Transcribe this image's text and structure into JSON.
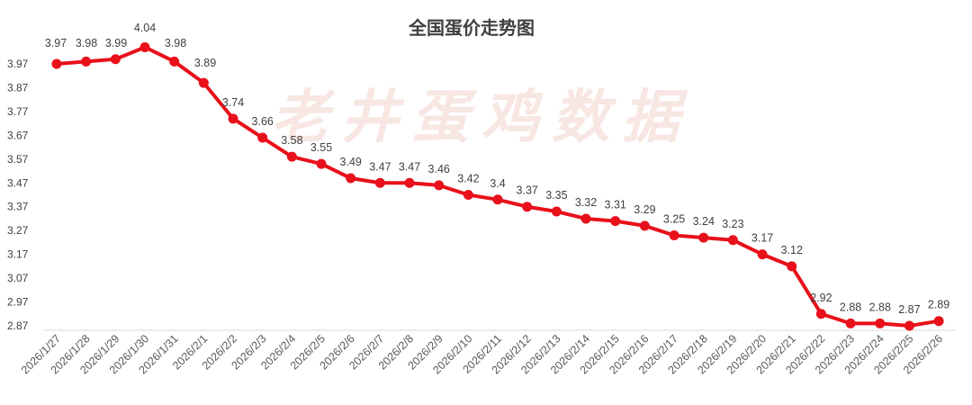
{
  "chart_data": {
    "type": "line",
    "title": "全国蛋价走势图",
    "watermark": "老井蛋鸡数据",
    "xlabel": "",
    "ylabel": "",
    "ylim": [
      2.87,
      3.97
    ],
    "yticks": [
      "3.97",
      "3.87",
      "3.77",
      "3.67",
      "3.57",
      "3.47",
      "3.37",
      "3.27",
      "3.17",
      "3.07",
      "2.97",
      "2.87"
    ],
    "grid": false,
    "legend": "none",
    "color": "#e8101a",
    "categories": [
      "2026/1/27",
      "2026/1/28",
      "2026/1/29",
      "2026/1/30",
      "2026/1/31",
      "2026/2/1",
      "2026/2/2",
      "2026/2/3",
      "2026/2/4",
      "2026/2/5",
      "2026/2/6",
      "2026/2/7",
      "2026/2/8",
      "2026/2/9",
      "2026/2/10",
      "2026/2/11",
      "2026/2/12",
      "2026/2/13",
      "2026/2/14",
      "2026/2/15",
      "2026/2/16",
      "2026/2/17",
      "2026/2/18",
      "2026/2/19",
      "2026/2/20",
      "2026/2/21",
      "2026/2/22",
      "2026/2/23",
      "2026/2/24",
      "2026/2/25",
      "2026/2/26"
    ],
    "values": [
      3.97,
      3.98,
      3.99,
      4.04,
      3.98,
      3.89,
      3.74,
      3.66,
      3.58,
      3.55,
      3.49,
      3.47,
      3.47,
      3.46,
      3.42,
      3.4,
      3.37,
      3.35,
      3.32,
      3.31,
      3.29,
      3.25,
      3.24,
      3.23,
      3.17,
      3.12,
      2.92,
      2.88,
      2.88,
      2.87,
      2.89
    ],
    "labels": [
      "3.97",
      "3.98",
      "3.99",
      "4.04",
      "3.98",
      "3.89",
      "3.74",
      "3.66",
      "3.58",
      "3.55",
      "3.49",
      "3.47",
      "3.47",
      "3.46",
      "3.42",
      "3.4",
      "3.37",
      "3.35",
      "3.32",
      "3.31",
      "3.29",
      "3.25",
      "3.24",
      "3.23",
      "3.17",
      "3.12",
      "2.92",
      "2.88",
      "2.88",
      "2.87",
      "2.89"
    ]
  }
}
